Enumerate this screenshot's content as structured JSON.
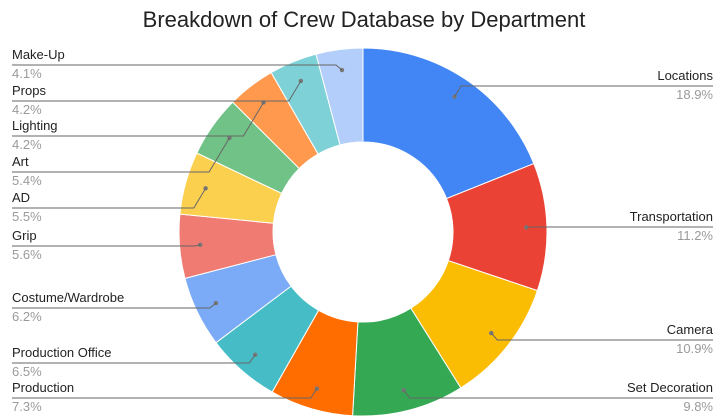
{
  "chart_data": {
    "type": "pie",
    "variant": "donut",
    "title": "Breakdown of Crew Database by Department",
    "legend": "labels-outside",
    "slices": [
      {
        "name": "Locations",
        "value": 18.9,
        "label": "18.9%",
        "color": "#4285F4"
      },
      {
        "name": "Transportation",
        "value": 11.2,
        "label": "11.2%",
        "color": "#EA4335"
      },
      {
        "name": "Camera",
        "value": 10.9,
        "label": "10.9%",
        "color": "#FBBC04"
      },
      {
        "name": "Set Decoration",
        "value": 9.8,
        "label": "9.8%",
        "color": "#34A853"
      },
      {
        "name": "Production",
        "value": 7.3,
        "label": "7.3%",
        "color": "#FF6D01"
      },
      {
        "name": "Production Office",
        "value": 6.5,
        "label": "6.5%",
        "color": "#46BDC6"
      },
      {
        "name": "Costume/Wardrobe",
        "value": 6.2,
        "label": "6.2%",
        "color": "#7BAAF7"
      },
      {
        "name": "Grip",
        "value": 5.6,
        "label": "5.6%",
        "color": "#F07B72"
      },
      {
        "name": "AD",
        "value": 5.5,
        "label": "5.5%",
        "color": "#FCD04F"
      },
      {
        "name": "Art",
        "value": 5.4,
        "label": "5.4%",
        "color": "#71C287"
      },
      {
        "name": "Lighting",
        "value": 4.2,
        "label": "4.2%",
        "color": "#FF994D"
      },
      {
        "name": "Props",
        "value": 4.2,
        "label": "4.2%",
        "color": "#7ED1D7"
      },
      {
        "name": "Make-Up",
        "value": 4.1,
        "label": "4.1%",
        "color": "#B3CEFB"
      }
    ]
  }
}
